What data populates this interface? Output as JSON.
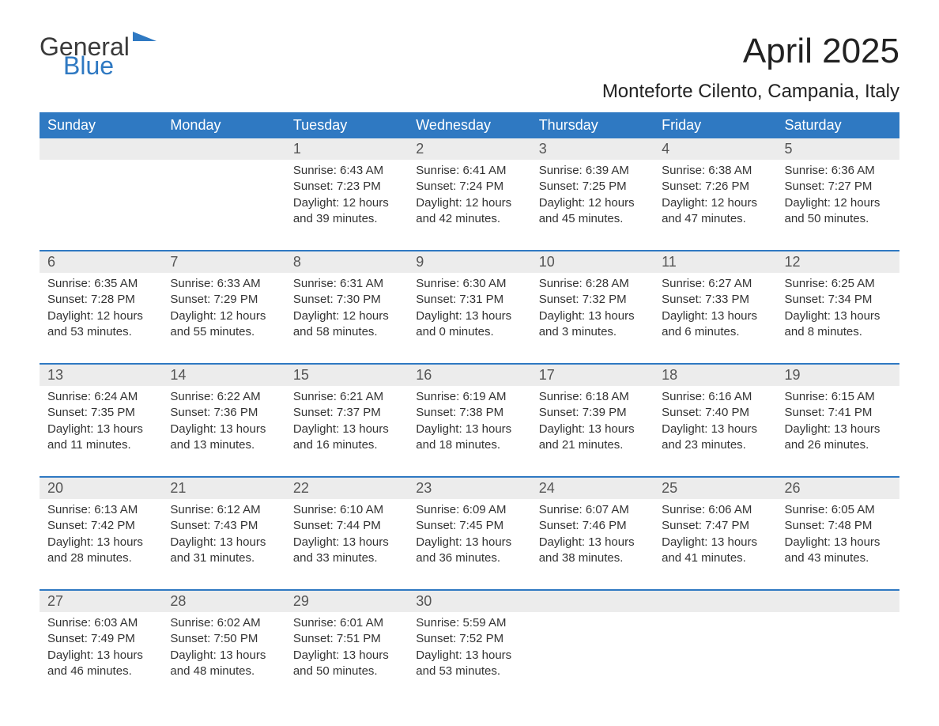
{
  "logo": {
    "line1": "General",
    "line2": "Blue"
  },
  "title": "April 2025",
  "location": "Monteforte Cilento, Campania, Italy",
  "colors": {
    "header_bg": "#2f79c2",
    "header_text": "#ffffff",
    "daynum_bg": "#ececec",
    "row_border": "#2f79c2",
    "text": "#333333",
    "title": "#222222"
  },
  "typography": {
    "title_fontsize": 44,
    "location_fontsize": 24,
    "dow_fontsize": 18,
    "daynum_fontsize": 18,
    "body_fontsize": 15
  },
  "days_of_week": [
    "Sunday",
    "Monday",
    "Tuesday",
    "Wednesday",
    "Thursday",
    "Friday",
    "Saturday"
  ],
  "weeks": [
    [
      {
        "num": "",
        "sunrise": "",
        "sunset": "",
        "daylight": ""
      },
      {
        "num": "",
        "sunrise": "",
        "sunset": "",
        "daylight": ""
      },
      {
        "num": "1",
        "sunrise": "Sunrise: 6:43 AM",
        "sunset": "Sunset: 7:23 PM",
        "daylight": "Daylight: 12 hours and 39 minutes."
      },
      {
        "num": "2",
        "sunrise": "Sunrise: 6:41 AM",
        "sunset": "Sunset: 7:24 PM",
        "daylight": "Daylight: 12 hours and 42 minutes."
      },
      {
        "num": "3",
        "sunrise": "Sunrise: 6:39 AM",
        "sunset": "Sunset: 7:25 PM",
        "daylight": "Daylight: 12 hours and 45 minutes."
      },
      {
        "num": "4",
        "sunrise": "Sunrise: 6:38 AM",
        "sunset": "Sunset: 7:26 PM",
        "daylight": "Daylight: 12 hours and 47 minutes."
      },
      {
        "num": "5",
        "sunrise": "Sunrise: 6:36 AM",
        "sunset": "Sunset: 7:27 PM",
        "daylight": "Daylight: 12 hours and 50 minutes."
      }
    ],
    [
      {
        "num": "6",
        "sunrise": "Sunrise: 6:35 AM",
        "sunset": "Sunset: 7:28 PM",
        "daylight": "Daylight: 12 hours and 53 minutes."
      },
      {
        "num": "7",
        "sunrise": "Sunrise: 6:33 AM",
        "sunset": "Sunset: 7:29 PM",
        "daylight": "Daylight: 12 hours and 55 minutes."
      },
      {
        "num": "8",
        "sunrise": "Sunrise: 6:31 AM",
        "sunset": "Sunset: 7:30 PM",
        "daylight": "Daylight: 12 hours and 58 minutes."
      },
      {
        "num": "9",
        "sunrise": "Sunrise: 6:30 AM",
        "sunset": "Sunset: 7:31 PM",
        "daylight": "Daylight: 13 hours and 0 minutes."
      },
      {
        "num": "10",
        "sunrise": "Sunrise: 6:28 AM",
        "sunset": "Sunset: 7:32 PM",
        "daylight": "Daylight: 13 hours and 3 minutes."
      },
      {
        "num": "11",
        "sunrise": "Sunrise: 6:27 AM",
        "sunset": "Sunset: 7:33 PM",
        "daylight": "Daylight: 13 hours and 6 minutes."
      },
      {
        "num": "12",
        "sunrise": "Sunrise: 6:25 AM",
        "sunset": "Sunset: 7:34 PM",
        "daylight": "Daylight: 13 hours and 8 minutes."
      }
    ],
    [
      {
        "num": "13",
        "sunrise": "Sunrise: 6:24 AM",
        "sunset": "Sunset: 7:35 PM",
        "daylight": "Daylight: 13 hours and 11 minutes."
      },
      {
        "num": "14",
        "sunrise": "Sunrise: 6:22 AM",
        "sunset": "Sunset: 7:36 PM",
        "daylight": "Daylight: 13 hours and 13 minutes."
      },
      {
        "num": "15",
        "sunrise": "Sunrise: 6:21 AM",
        "sunset": "Sunset: 7:37 PM",
        "daylight": "Daylight: 13 hours and 16 minutes."
      },
      {
        "num": "16",
        "sunrise": "Sunrise: 6:19 AM",
        "sunset": "Sunset: 7:38 PM",
        "daylight": "Daylight: 13 hours and 18 minutes."
      },
      {
        "num": "17",
        "sunrise": "Sunrise: 6:18 AM",
        "sunset": "Sunset: 7:39 PM",
        "daylight": "Daylight: 13 hours and 21 minutes."
      },
      {
        "num": "18",
        "sunrise": "Sunrise: 6:16 AM",
        "sunset": "Sunset: 7:40 PM",
        "daylight": "Daylight: 13 hours and 23 minutes."
      },
      {
        "num": "19",
        "sunrise": "Sunrise: 6:15 AM",
        "sunset": "Sunset: 7:41 PM",
        "daylight": "Daylight: 13 hours and 26 minutes."
      }
    ],
    [
      {
        "num": "20",
        "sunrise": "Sunrise: 6:13 AM",
        "sunset": "Sunset: 7:42 PM",
        "daylight": "Daylight: 13 hours and 28 minutes."
      },
      {
        "num": "21",
        "sunrise": "Sunrise: 6:12 AM",
        "sunset": "Sunset: 7:43 PM",
        "daylight": "Daylight: 13 hours and 31 minutes."
      },
      {
        "num": "22",
        "sunrise": "Sunrise: 6:10 AM",
        "sunset": "Sunset: 7:44 PM",
        "daylight": "Daylight: 13 hours and 33 minutes."
      },
      {
        "num": "23",
        "sunrise": "Sunrise: 6:09 AM",
        "sunset": "Sunset: 7:45 PM",
        "daylight": "Daylight: 13 hours and 36 minutes."
      },
      {
        "num": "24",
        "sunrise": "Sunrise: 6:07 AM",
        "sunset": "Sunset: 7:46 PM",
        "daylight": "Daylight: 13 hours and 38 minutes."
      },
      {
        "num": "25",
        "sunrise": "Sunrise: 6:06 AM",
        "sunset": "Sunset: 7:47 PM",
        "daylight": "Daylight: 13 hours and 41 minutes."
      },
      {
        "num": "26",
        "sunrise": "Sunrise: 6:05 AM",
        "sunset": "Sunset: 7:48 PM",
        "daylight": "Daylight: 13 hours and 43 minutes."
      }
    ],
    [
      {
        "num": "27",
        "sunrise": "Sunrise: 6:03 AM",
        "sunset": "Sunset: 7:49 PM",
        "daylight": "Daylight: 13 hours and 46 minutes."
      },
      {
        "num": "28",
        "sunrise": "Sunrise: 6:02 AM",
        "sunset": "Sunset: 7:50 PM",
        "daylight": "Daylight: 13 hours and 48 minutes."
      },
      {
        "num": "29",
        "sunrise": "Sunrise: 6:01 AM",
        "sunset": "Sunset: 7:51 PM",
        "daylight": "Daylight: 13 hours and 50 minutes."
      },
      {
        "num": "30",
        "sunrise": "Sunrise: 5:59 AM",
        "sunset": "Sunset: 7:52 PM",
        "daylight": "Daylight: 13 hours and 53 minutes."
      },
      {
        "num": "",
        "sunrise": "",
        "sunset": "",
        "daylight": ""
      },
      {
        "num": "",
        "sunrise": "",
        "sunset": "",
        "daylight": ""
      },
      {
        "num": "",
        "sunrise": "",
        "sunset": "",
        "daylight": ""
      }
    ]
  ]
}
